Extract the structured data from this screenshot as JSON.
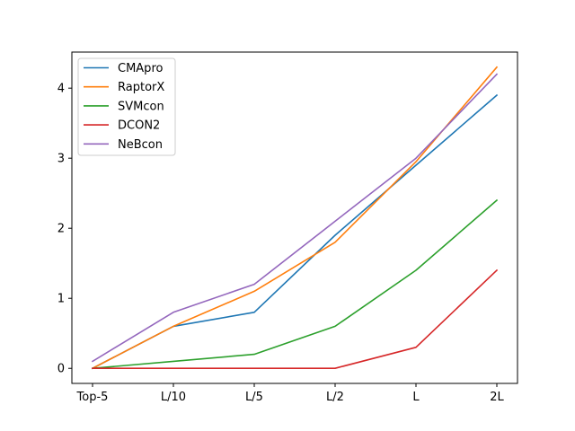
{
  "chart_data": {
    "type": "line",
    "categories": [
      "Top-5",
      "L/10",
      "L/5",
      "L/2",
      "L",
      "2L"
    ],
    "series": [
      {
        "name": "CMApro",
        "color": "#1f77b4",
        "values": [
          0.0,
          0.6,
          0.8,
          1.9,
          2.9,
          3.9
        ]
      },
      {
        "name": "RaptorX",
        "color": "#ff7f0e",
        "values": [
          0.0,
          0.6,
          1.1,
          1.8,
          2.95,
          4.3
        ]
      },
      {
        "name": "SVMcon",
        "color": "#2ca02c",
        "values": [
          0.0,
          0.1,
          0.2,
          0.6,
          1.4,
          2.4
        ]
      },
      {
        "name": "DCON2",
        "color": "#d62728",
        "values": [
          0.0,
          0.0,
          0.0,
          0.0,
          0.3,
          1.4
        ]
      },
      {
        "name": "NeBcon",
        "color": "#9467bd",
        "values": [
          0.1,
          0.8,
          1.2,
          2.1,
          3.0,
          4.2
        ]
      }
    ],
    "yticks": [
      "0",
      "1",
      "2",
      "3",
      "4"
    ],
    "ylim": [
      -0.215,
      4.515
    ],
    "xlabel": "",
    "ylabel": "",
    "title": "",
    "legend": "top-left",
    "grid": false
  }
}
